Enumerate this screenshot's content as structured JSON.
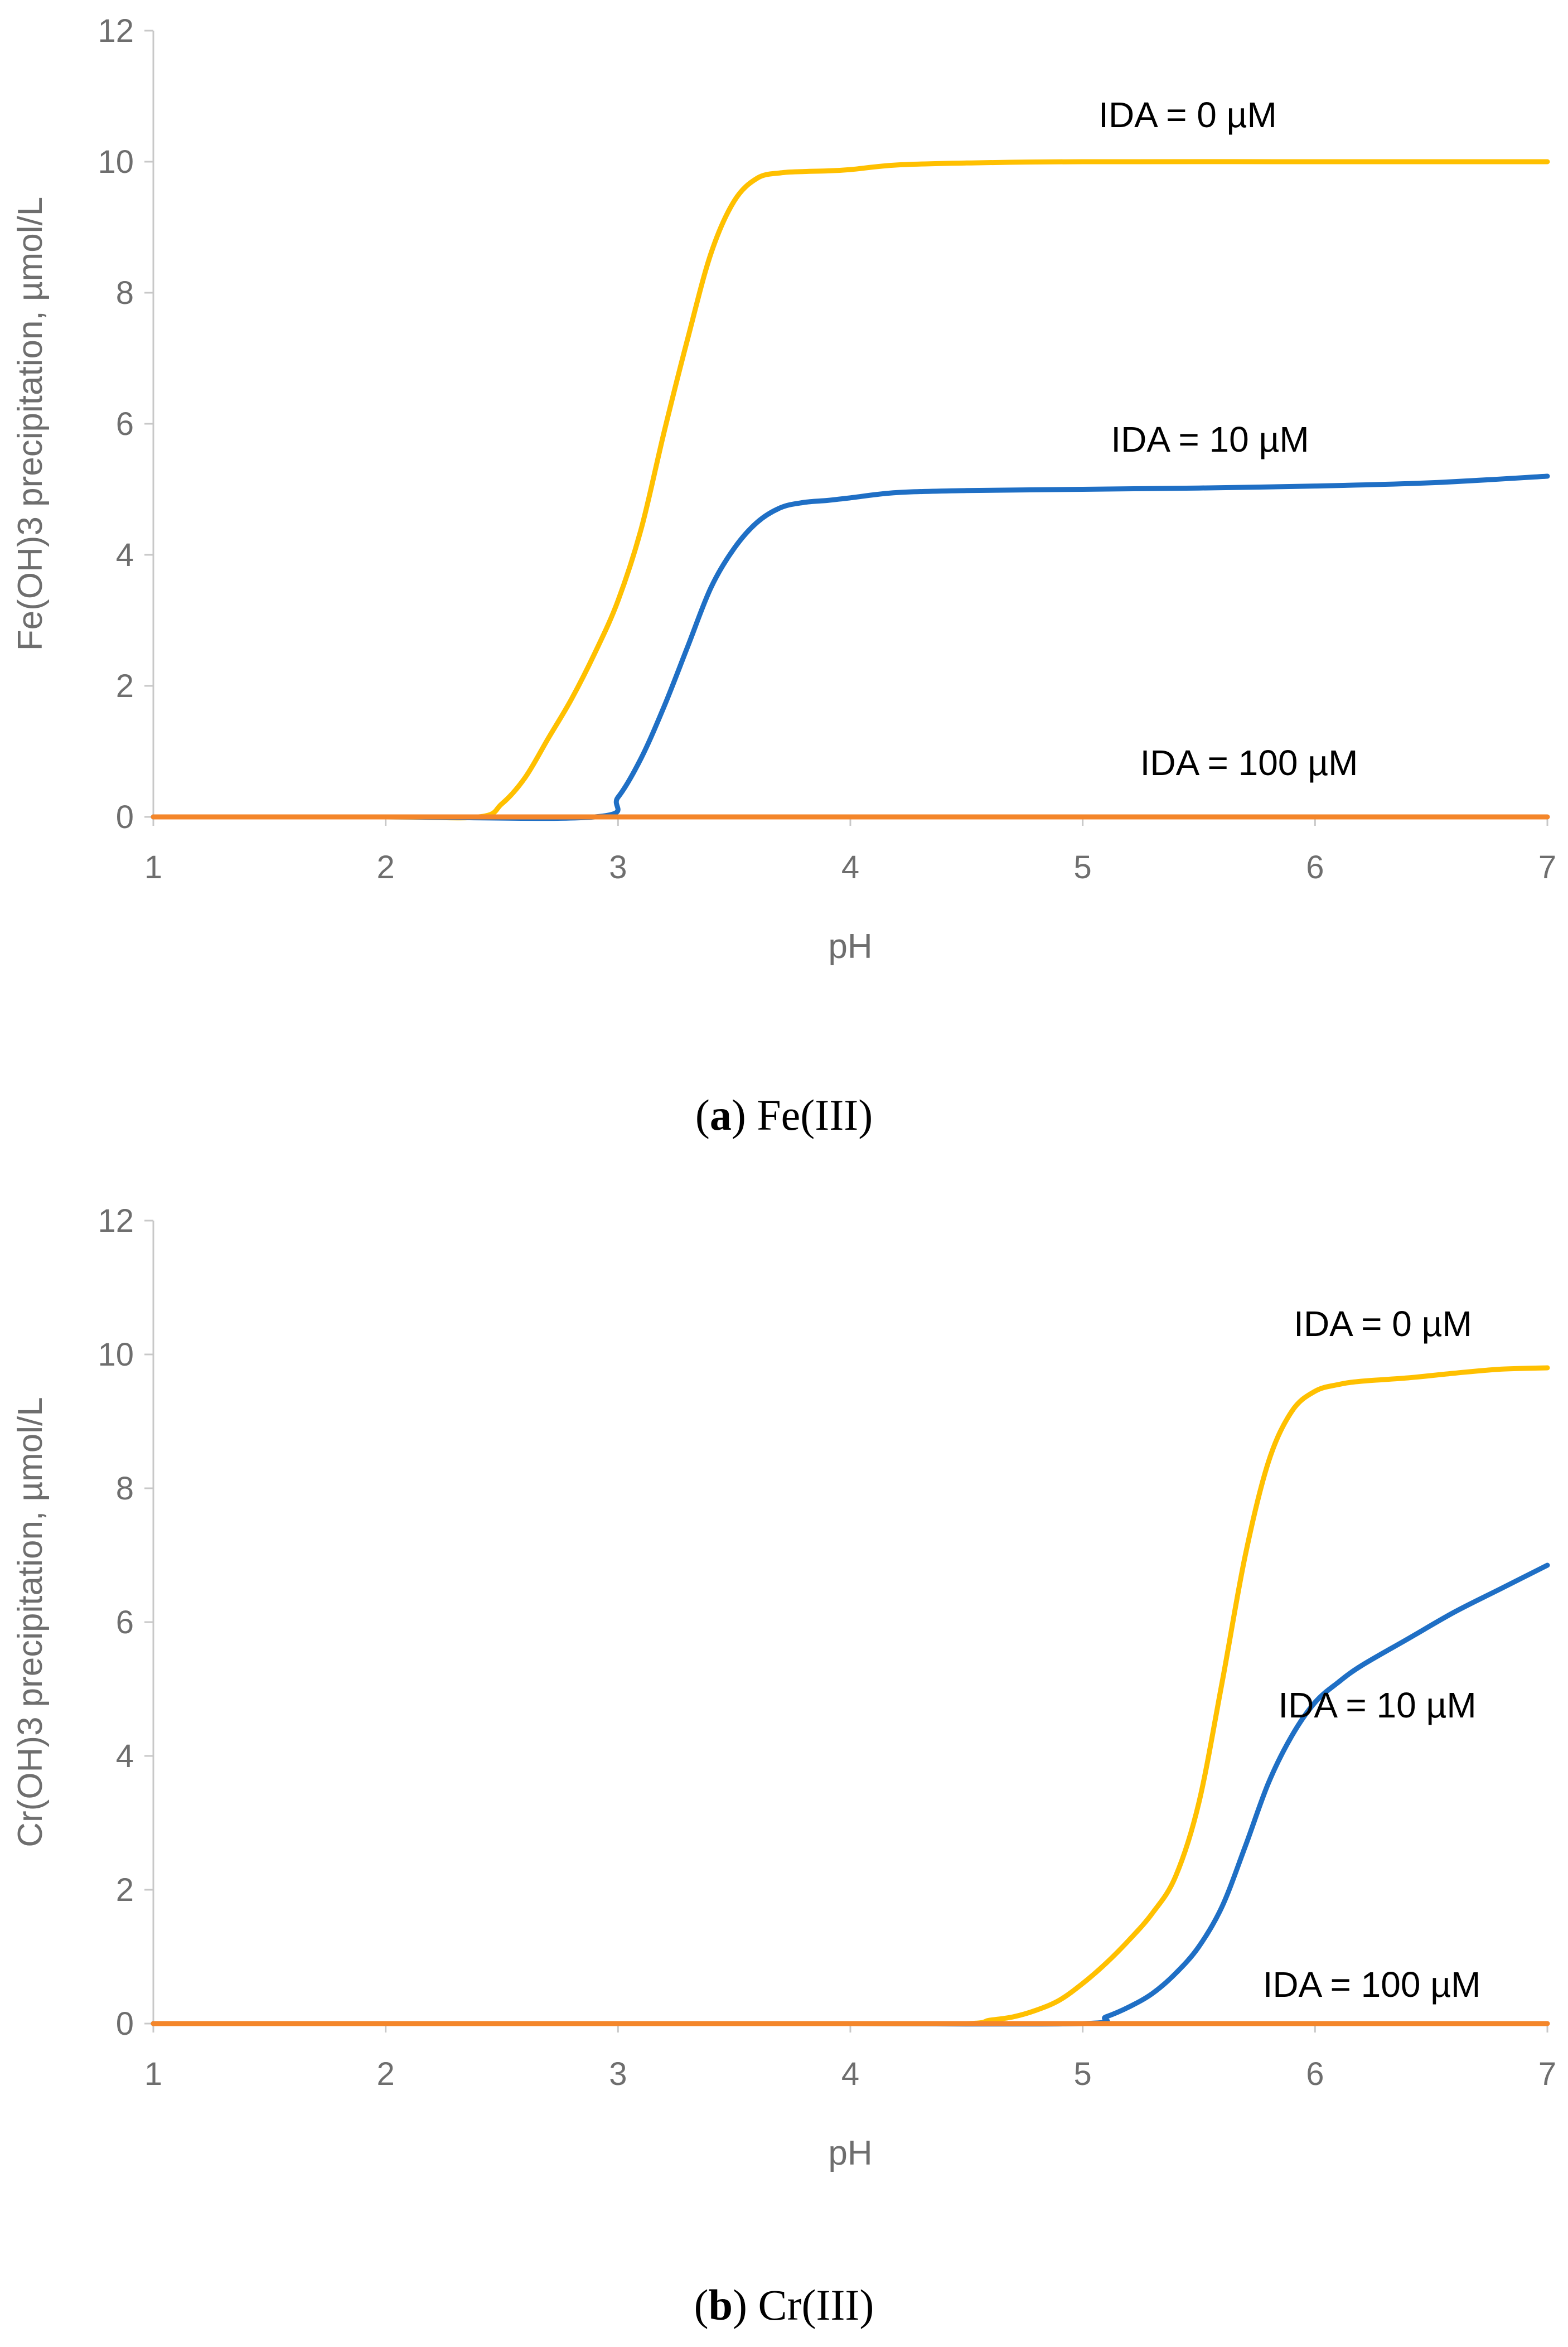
{
  "chart_data": [
    {
      "type": "line",
      "panel": "a",
      "xlabel": "pH",
      "ylabel": "Fe(OH)3 precipitation, µmol/L",
      "xlim": [
        1,
        7
      ],
      "ylim": [
        0,
        12
      ],
      "xticks": [
        "1",
        "2",
        "3",
        "4",
        "5",
        "6",
        "7"
      ],
      "yticks": [
        "0",
        "2",
        "4",
        "6",
        "8",
        "10",
        "12"
      ],
      "grid": false,
      "series": [
        {
          "name": "IDA = 0 µM",
          "color": "#FFC000",
          "x": [
            1,
            2,
            2.4,
            2.5,
            2.6,
            2.7,
            2.8,
            2.9,
            3.0,
            3.1,
            3.2,
            3.3,
            3.4,
            3.5,
            3.6,
            3.7,
            3.8,
            3.9,
            4.0,
            4.2,
            4.5,
            5.0,
            6.0,
            7.0
          ],
          "values": [
            0,
            0,
            0,
            0.2,
            0.6,
            1.2,
            1.8,
            2.5,
            3.3,
            4.4,
            5.9,
            7.3,
            8.6,
            9.4,
            9.75,
            9.83,
            9.85,
            9.86,
            9.88,
            9.95,
            9.98,
            10.0,
            10.0,
            10.0
          ]
        },
        {
          "name": "IDA = 10 µM",
          "color": "#1F6FC5",
          "x": [
            1,
            2,
            2.9,
            3.0,
            3.1,
            3.2,
            3.3,
            3.4,
            3.5,
            3.6,
            3.7,
            3.8,
            3.9,
            4.0,
            4.2,
            4.5,
            5.0,
            5.5,
            6.0,
            6.5,
            7.0
          ],
          "values": [
            0,
            0,
            0,
            0.3,
            0.9,
            1.7,
            2.6,
            3.5,
            4.1,
            4.5,
            4.72,
            4.8,
            4.83,
            4.87,
            4.95,
            4.98,
            5.0,
            5.02,
            5.05,
            5.1,
            5.2
          ]
        },
        {
          "name": "IDA = 100 µM",
          "color": "#F4862A",
          "x": [
            1,
            7
          ],
          "values": [
            0,
            0
          ]
        }
      ],
      "caption_bold": "a",
      "caption_text": "Fe(III)"
    },
    {
      "type": "line",
      "panel": "b",
      "xlabel": "pH",
      "ylabel": "Cr(OH)3 precipitation, µmol/L",
      "xlim": [
        1,
        7
      ],
      "ylim": [
        0,
        12
      ],
      "xticks": [
        "1",
        "2",
        "3",
        "4",
        "5",
        "6",
        "7"
      ],
      "yticks": [
        "0",
        "2",
        "4",
        "6",
        "8",
        "10",
        "12"
      ],
      "grid": false,
      "series": [
        {
          "name": "IDA = 0 µM",
          "color": "#FFC000",
          "x": [
            1,
            2,
            3,
            4,
            4.5,
            4.6,
            4.7,
            4.8,
            4.9,
            5.0,
            5.1,
            5.2,
            5.3,
            5.4,
            5.5,
            5.6,
            5.7,
            5.8,
            5.9,
            6.0,
            6.1,
            6.2,
            6.4,
            6.6,
            6.8,
            7.0
          ],
          "values": [
            0,
            0,
            0,
            0,
            0,
            0.05,
            0.1,
            0.2,
            0.35,
            0.6,
            0.9,
            1.25,
            1.65,
            2.2,
            3.3,
            5.1,
            7.0,
            8.4,
            9.15,
            9.45,
            9.55,
            9.6,
            9.65,
            9.72,
            9.78,
            9.8
          ]
        },
        {
          "name": "IDA = 10 µM",
          "color": "#1F6FC5",
          "x": [
            1,
            2,
            3,
            4,
            5.0,
            5.1,
            5.2,
            5.3,
            5.4,
            5.5,
            5.6,
            5.7,
            5.8,
            5.9,
            6.0,
            6.1,
            6.2,
            6.4,
            6.6,
            6.8,
            7.0
          ],
          "values": [
            0,
            0,
            0,
            0,
            0,
            0.1,
            0.25,
            0.45,
            0.75,
            1.15,
            1.75,
            2.65,
            3.6,
            4.3,
            4.8,
            5.1,
            5.35,
            5.75,
            6.15,
            6.5,
            6.85
          ]
        },
        {
          "name": "IDA = 100 µM",
          "color": "#F4862A",
          "x": [
            1,
            7
          ],
          "values": [
            0,
            0
          ]
        }
      ],
      "caption_bold": "b",
      "caption_text": "Cr(III)"
    }
  ]
}
